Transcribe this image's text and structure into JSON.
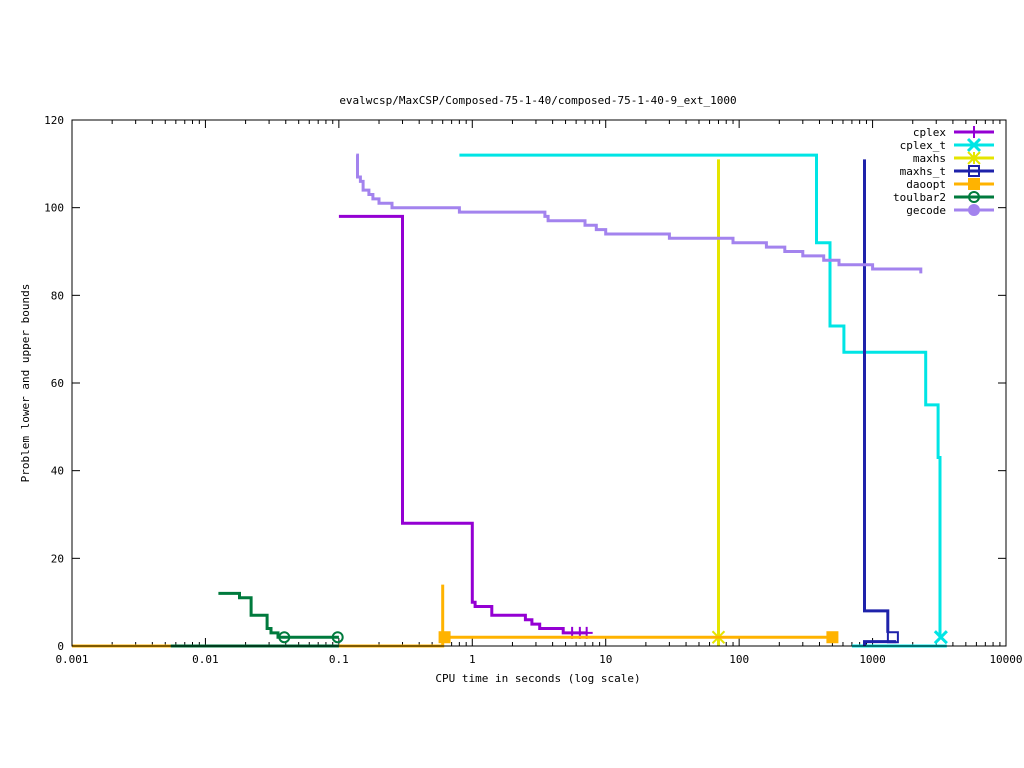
{
  "chart_data": {
    "type": "line",
    "title": "evalwcsp/MaxCSP/Composed-75-1-40/composed-75-1-40-9_ext_1000",
    "xlabel": "CPU time in seconds (log scale)",
    "ylabel": "Problem lower and upper bounds",
    "xscale": "log",
    "xlim": [
      0.001,
      10000
    ],
    "ylim": [
      0,
      120
    ],
    "x_ticks": [
      0.001,
      0.01,
      0.1,
      1,
      10,
      100,
      1000,
      10000
    ],
    "x_tick_labels": [
      "0.001",
      "0.01",
      "0.1",
      "1",
      "10",
      "100",
      "1000",
      "10000"
    ],
    "y_ticks": [
      0,
      20,
      40,
      60,
      80,
      100,
      120
    ],
    "y_tick_labels": [
      "0",
      "20",
      "40",
      "60",
      "80",
      "100",
      "120"
    ],
    "grid": false,
    "legend_position": "top-right",
    "series": [
      {
        "name": "cplex",
        "color": "#9400d3",
        "marker": "plus",
        "upper": [
          [
            0.1,
            98
          ],
          [
            0.3,
            98
          ],
          [
            0.3,
            28
          ],
          [
            1.0,
            28
          ],
          [
            1.0,
            10
          ],
          [
            1.05,
            10
          ],
          [
            1.05,
            9
          ],
          [
            1.4,
            9
          ],
          [
            1.4,
            7
          ],
          [
            2.5,
            7
          ],
          [
            2.5,
            6
          ],
          [
            2.8,
            6
          ],
          [
            2.8,
            5
          ],
          [
            3.2,
            5
          ],
          [
            3.2,
            4
          ],
          [
            4.8,
            4
          ],
          [
            4.8,
            3
          ],
          [
            7.2,
            3
          ]
        ],
        "lower": [],
        "markers": [
          [
            5.6,
            3
          ],
          [
            6.4,
            3
          ],
          [
            7.2,
            3
          ]
        ]
      },
      {
        "name": "cplex_t",
        "color": "#00e5e5",
        "marker": "x",
        "upper": [
          [
            0.8,
            112
          ],
          [
            380,
            112
          ],
          [
            380,
            92
          ],
          [
            480,
            92
          ],
          [
            480,
            73
          ],
          [
            610,
            73
          ],
          [
            610,
            67
          ],
          [
            2500,
            67
          ],
          [
            2500,
            55
          ],
          [
            3100,
            55
          ],
          [
            3100,
            43
          ],
          [
            3200,
            43
          ],
          [
            3200,
            2
          ]
        ],
        "lower": [
          [
            700,
            0
          ],
          [
            3600,
            0
          ]
        ],
        "markers": [
          [
            3250,
            2
          ]
        ]
      },
      {
        "name": "maxhs",
        "color": "#e5e500",
        "marker": "star",
        "upper": [
          [
            70,
            111
          ],
          [
            70,
            0
          ]
        ],
        "lower": [],
        "markers": [
          [
            70,
            2
          ]
        ]
      },
      {
        "name": "maxhs_t",
        "color": "#1e22aa",
        "marker": "square",
        "upper": [
          [
            870,
            111
          ],
          [
            870,
            8
          ],
          [
            1300,
            8
          ],
          [
            1300,
            3
          ]
        ],
        "lower": [
          [
            870,
            0
          ],
          [
            870,
            1
          ],
          [
            1500,
            1
          ]
        ],
        "markers": [
          [
            1420,
            2
          ]
        ]
      },
      {
        "name": "daoopt",
        "color": "#ffb300",
        "marker": "filled-square",
        "upper": [
          [
            0.001,
            0
          ],
          [
            0.6,
            0
          ],
          [
            0.6,
            14
          ],
          [
            0.6,
            2
          ],
          [
            500,
            2
          ]
        ],
        "lower": [],
        "markers": [
          [
            0.62,
            2
          ],
          [
            500,
            2
          ]
        ]
      },
      {
        "name": "toulbar2",
        "color": "#007a3d",
        "marker": "circle",
        "upper": [
          [
            0.0125,
            12
          ],
          [
            0.018,
            12
          ],
          [
            0.018,
            11
          ],
          [
            0.022,
            11
          ],
          [
            0.022,
            7
          ],
          [
            0.029,
            7
          ],
          [
            0.029,
            4
          ],
          [
            0.031,
            4
          ],
          [
            0.031,
            3
          ],
          [
            0.035,
            3
          ],
          [
            0.035,
            2
          ],
          [
            0.1,
            2
          ]
        ],
        "lower": [
          [
            0.0055,
            0
          ],
          [
            0.1,
            0
          ]
        ],
        "markers": [
          [
            0.039,
            2
          ],
          [
            0.098,
            2
          ]
        ]
      },
      {
        "name": "gecode",
        "color": "#a383ee",
        "marker": "filled-circle",
        "upper": [
          [
            0.135,
            112
          ],
          [
            0.138,
            112
          ],
          [
            0.138,
            107
          ],
          [
            0.145,
            107
          ],
          [
            0.145,
            106
          ],
          [
            0.152,
            106
          ],
          [
            0.152,
            104
          ],
          [
            0.168,
            104
          ],
          [
            0.168,
            103
          ],
          [
            0.18,
            103
          ],
          [
            0.18,
            102
          ],
          [
            0.2,
            102
          ],
          [
            0.2,
            101
          ],
          [
            0.25,
            101
          ],
          [
            0.25,
            100
          ],
          [
            0.8,
            100
          ],
          [
            0.8,
            99
          ],
          [
            3.5,
            99
          ],
          [
            3.5,
            98
          ],
          [
            3.7,
            98
          ],
          [
            3.7,
            97
          ],
          [
            7.0,
            97
          ],
          [
            7.0,
            96
          ],
          [
            8.5,
            96
          ],
          [
            8.5,
            95
          ],
          [
            10.0,
            95
          ],
          [
            10.0,
            94
          ],
          [
            30,
            94
          ],
          [
            30,
            93
          ],
          [
            90,
            93
          ],
          [
            90,
            92
          ],
          [
            160,
            92
          ],
          [
            160,
            91
          ],
          [
            220,
            91
          ],
          [
            220,
            90
          ],
          [
            300,
            90
          ],
          [
            300,
            89
          ],
          [
            430,
            89
          ],
          [
            430,
            88
          ],
          [
            560,
            88
          ],
          [
            560,
            87
          ],
          [
            1000,
            87
          ],
          [
            1000,
            86
          ],
          [
            2300,
            86
          ],
          [
            2300,
            85
          ]
        ],
        "lower": [],
        "markers": []
      }
    ]
  }
}
